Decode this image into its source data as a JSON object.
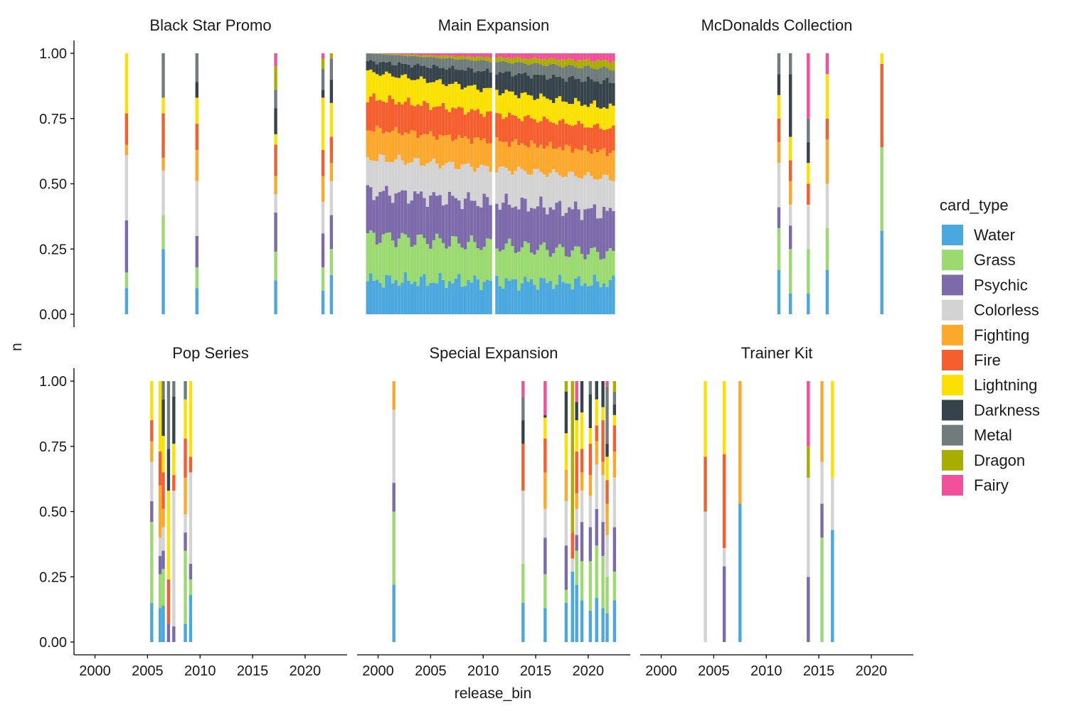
{
  "chart_data": {
    "type": "bar",
    "stacked": true,
    "facet_by": "set_type",
    "xlabel": "release_bin",
    "ylabel": "n",
    "xlim": [
      1998,
      2024
    ],
    "ylim": [
      0,
      1
    ],
    "x_ticks": [
      2000,
      2005,
      2010,
      2015,
      2020
    ],
    "y_ticks": [
      "0.00",
      "0.25",
      "0.50",
      "0.75",
      "1.00"
    ],
    "legend": {
      "title": "card_type",
      "placement": "right",
      "entries": [
        {
          "name": "Water",
          "color": "#4aa8de"
        },
        {
          "name": "Grass",
          "color": "#9ada70"
        },
        {
          "name": "Psychic",
          "color": "#7c6aaa"
        },
        {
          "name": "Colorless",
          "color": "#d3d3d3"
        },
        {
          "name": "Fighting",
          "color": "#fba82c"
        },
        {
          "name": "Fire",
          "color": "#f55e2e"
        },
        {
          "name": "Lightning",
          "color": "#fae103"
        },
        {
          "name": "Darkness",
          "color": "#37434b"
        },
        {
          "name": "Metal",
          "color": "#6f7c7b"
        },
        {
          "name": "Dragon",
          "color": "#a8ad00"
        },
        {
          "name": "Fairy",
          "color": "#f2509b"
        }
      ]
    },
    "facets": [
      {
        "name": "Black Star Promo",
        "bars": [
          {
            "x": 2003.0,
            "segments": {
              "Water": 0.1,
              "Psychic": 0.2,
              "Lightning": 0.23,
              "Grass": 0.06,
              "Fire": 0.12,
              "Fighting": 0.04,
              "Colorless": 0.25
            }
          },
          {
            "x": 2006.5,
            "segments": {
              "Water": 0.25,
              "Metal": 0.17,
              "Lightning": 0.06,
              "Grass": 0.13,
              "Fire": 0.17,
              "Fighting": 0.05,
              "Colorless": 0.17
            }
          },
          {
            "x": 2009.7,
            "segments": {
              "Water": 0.1,
              "Psychic": 0.12,
              "Metal": 0.11,
              "Lightning": 0.1,
              "Grass": 0.08,
              "Fire": 0.1,
              "Fighting": 0.12,
              "Darkness": 0.06,
              "Colorless": 0.21
            }
          },
          {
            "x": 2017.2,
            "segments": {
              "Water": 0.13,
              "Psychic": 0.15,
              "Metal": 0.07,
              "Lightning": 0.04,
              "Grass": 0.11,
              "Fire": 0.12,
              "Fighting": 0.07,
              "Fairy": 0.05,
              "Dragon": 0.09,
              "Darkness": 0.1,
              "Colorless": 0.07
            }
          },
          {
            "x": 2021.7,
            "segments": {
              "Water": 0.09,
              "Psychic": 0.13,
              "Metal": 0.08,
              "Lightning": 0.2,
              "Grass": 0.09,
              "Fire": 0.1,
              "Fighting": 0.1,
              "Fairy": 0.02,
              "Dragon": 0.04,
              "Darkness": 0.03,
              "Colorless": 0.12
            }
          },
          {
            "x": 2022.5,
            "segments": {
              "Water": 0.15,
              "Psychic": 0.13,
              "Metal": 0.08,
              "Lightning": 0.13,
              "Grass": 0.1,
              "Fire": 0.1,
              "Fighting": 0.07,
              "Dragon": 0.02,
              "Darkness": 0.09,
              "Colorless": 0.13
            }
          }
        ]
      },
      {
        "name": "Main Expansion",
        "dense_series": true,
        "x_range": [
          1999.0,
          2022.4
        ],
        "gap": [
          2010.7,
          2011.0
        ],
        "bar_step": 0.3,
        "proportions_start": {
          "Water": 0.13,
          "Psychic": 0.17,
          "Metal": 0.03,
          "Lightning": 0.1,
          "Grass": 0.17,
          "Fire": 0.12,
          "Fighting": 0.11,
          "Darkness": 0.04,
          "Dragon": 0.0,
          "Fairy": 0.0,
          "Colorless": 0.13
        },
        "proportions_end": {
          "Water": 0.12,
          "Psychic": 0.16,
          "Metal": 0.05,
          "Lightning": 0.08,
          "Grass": 0.11,
          "Fire": 0.09,
          "Fighting": 0.1,
          "Darkness": 0.1,
          "Dragon": 0.03,
          "Fairy": 0.03,
          "Colorless": 0.13
        }
      },
      {
        "name": "McDonalds Collection",
        "bars": [
          {
            "x": 2011.2,
            "segments": {
              "Water": 0.17,
              "Psychic": 0.08,
              "Metal": 0.08,
              "Lightning": 0.09,
              "Grass": 0.16,
              "Fire": 0.09,
              "Fighting": 0.08,
              "Darkness": 0.08,
              "Colorless": 0.17
            }
          },
          {
            "x": 2012.3,
            "segments": {
              "Water": 0.08,
              "Psychic": 0.09,
              "Metal": 0.08,
              "Lightning": 0.09,
              "Grass": 0.17,
              "Fire": 0.08,
              "Fighting": 0.09,
              "Darkness": 0.24,
              "Colorless": 0.08
            }
          },
          {
            "x": 2014.0,
            "segments": {
              "Water": 0.08,
              "Metal": 0.09,
              "Lightning": 0.08,
              "Grass": 0.17,
              "Fire": 0.08,
              "Fairy": 0.25,
              "Darkness": 0.08,
              "Colorless": 0.17
            }
          },
          {
            "x": 2015.8,
            "segments": {
              "Water": 0.17,
              "Lightning": 0.17,
              "Grass": 0.16,
              "Fire": 0.08,
              "Fighting": 0.17,
              "Fairy": 0.08,
              "Colorless": 0.17
            }
          },
          {
            "x": 2021.0,
            "segments": {
              "Water": 0.32,
              "Lightning": 0.04,
              "Grass": 0.32,
              "Fire": 0.32
            }
          }
        ]
      },
      {
        "name": "Pop Series",
        "bars": [
          {
            "x": 2005.4,
            "segments": {
              "Water": 0.15,
              "Psychic": 0.08,
              "Lightning": 0.15,
              "Grass": 0.31,
              "Fire": 0.08,
              "Fighting": 0.08,
              "Colorless": 0.15
            }
          },
          {
            "x": 2006.2,
            "segments": {
              "Water": 0.13,
              "Psychic": 0.07,
              "Lightning": 0.27,
              "Grass": 0.13,
              "Fire": 0.13,
              "Fighting": 0.2,
              "Colorless": 0.07
            }
          },
          {
            "x": 2006.5,
            "segments": {
              "Water": 0.14,
              "Psychic": 0.07,
              "Metal": 0.07,
              "Lightning": 0.14,
              "Grass": 0.14,
              "Fire": 0.14,
              "Fighting": 0.07,
              "Darkness": 0.14,
              "Colorless": 0.09
            }
          },
          {
            "x": 2007.0,
            "segments": {
              "Psychic": 0.07,
              "Metal": 0.26,
              "Lightning": 0.34,
              "Fire": 0.17,
              "Darkness": 0.16
            }
          },
          {
            "x": 2007.5,
            "segments": {
              "Psychic": 0.06,
              "Metal": 0.06,
              "Lightning": 0.12,
              "Fire": 0.06,
              "Darkness": 0.18,
              "Colorless": 0.52
            }
          },
          {
            "x": 2008.6,
            "segments": {
              "Water": 0.07,
              "Psychic": 0.07,
              "Metal": 0.07,
              "Lightning": 0.15,
              "Grass": 0.28,
              "Fire": 0.15,
              "Fighting": 0.14,
              "Colorless": 0.07
            }
          },
          {
            "x": 2009.1,
            "segments": {
              "Water": 0.18,
              "Psychic": 0.06,
              "Lightning": 0.29,
              "Grass": 0.06,
              "Fire": 0.06,
              "Colorless": 0.35
            }
          }
        ]
      },
      {
        "name": "Special Expansion",
        "bars": [
          {
            "x": 2001.5,
            "segments": {
              "Water": 0.22,
              "Psychic": 0.11,
              "Grass": 0.28,
              "Fighting": 0.11,
              "Colorless": 0.28
            }
          },
          {
            "x": 2013.8,
            "segments": {
              "Water": 0.15,
              "Metal": 0.09,
              "Grass": 0.15,
              "Fire": 0.18,
              "Fairy": 0.06,
              "Darkness": 0.09,
              "Colorless": 0.28
            }
          },
          {
            "x": 2015.9,
            "segments": {
              "Water": 0.13,
              "Psychic": 0.14,
              "Lightning": 0.08,
              "Grass": 0.13,
              "Fire": 0.13,
              "Fighting": 0.14,
              "Fairy": 0.13,
              "Darkness": 0.01,
              "Colorless": 0.11
            }
          },
          {
            "x": 2017.9,
            "segments": {
              "Water": 0.15,
              "Psychic": 0.17,
              "Lightning": 0.14,
              "Grass": 0.05,
              "Fighting": 0.12,
              "Dragon": 0.04,
              "Darkness": 0.16,
              "Colorless": 0.17
            }
          },
          {
            "x": 2018.5,
            "segments": {
              "Water": 0.27,
              "Fire": 0.1,
              "Dragon": 0.58,
              "Colorless": 0.05
            }
          },
          {
            "x": 2018.9,
            "segments": {
              "Water": 0.22,
              "Psychic": 0.06,
              "Lightning": 0.12,
              "Grass": 0.13,
              "Fire": 0.16,
              "Fighting": 0.06,
              "Fairy": 0.08,
              "Darkness": 0.07,
              "Colorless": 0.1
            }
          },
          {
            "x": 2019.4,
            "segments": {
              "Water": 0.16,
              "Psychic": 0.15,
              "Lightning": 0.14,
              "Grass": 0.15,
              "Fire": 0.09,
              "Fighting": 0.07,
              "Darkness": 0.12,
              "Colorless": 0.12
            }
          },
          {
            "x": 2020.2,
            "segments": {
              "Water": 0.12,
              "Psychic": 0.13,
              "Metal": 0.05,
              "Lightning": 0.06,
              "Grass": 0.19,
              "Fire": 0.12,
              "Fighting": 0.08,
              "Darkness": 0.13,
              "Colorless": 0.12
            }
          },
          {
            "x": 2020.8,
            "segments": {
              "Water": 0.17,
              "Psychic": 0.14,
              "Lightning": 0.1,
              "Grass": 0.2,
              "Fire": 0.06,
              "Fighting": 0.09,
              "Darkness": 0.07,
              "Colorless": 0.17
            }
          },
          {
            "x": 2021.4,
            "segments": {
              "Water": 0.13,
              "Psychic": 0.13,
              "Lightning": 0.05,
              "Grass": 0.2,
              "Fire": 0.16,
              "Fighting": 0.05,
              "Darkness": 0.1,
              "Colorless": 0.18
            }
          },
          {
            "x": 2021.8,
            "segments": {
              "Water": 0.11,
              "Metal": 0.22,
              "Lightning": 0.09,
              "Grass": 0.14,
              "Fire": 0.09,
              "Fighting": 0.12,
              "Fairy": 0.02,
              "Darkness": 0.05,
              "Colorless": 0.16
            }
          },
          {
            "x": 2022.5,
            "segments": {
              "Water": 0.16,
              "Psychic": 0.17,
              "Metal": 0.05,
              "Lightning": 0.04,
              "Grass": 0.11,
              "Fire": 0.1,
              "Fighting": 0.1,
              "Dragon": 0.04,
              "Darkness": 0.04,
              "Colorless": 0.19
            }
          }
        ]
      },
      {
        "name": "Trainer Kit",
        "bars": [
          {
            "x": 2004.2,
            "segments": {
              "Lightning": 0.29,
              "Fire": 0.21,
              "Colorless": 0.5
            }
          },
          {
            "x": 2006.0,
            "segments": {
              "Psychic": 0.29,
              "Lightning": 0.28,
              "Fire": 0.36,
              "Colorless": 0.07
            }
          },
          {
            "x": 2007.5,
            "segments": {
              "Water": 0.53,
              "Fighting": 0.47
            }
          },
          {
            "x": 2014.0,
            "segments": {
              "Psychic": 0.25,
              "Fairy": 0.25,
              "Dragon": 0.12,
              "Colorless": 0.38
            }
          },
          {
            "x": 2015.3,
            "segments": {
              "Psychic": 0.13,
              "Grass": 0.4,
              "Fighting": 0.31,
              "Colorless": 0.16
            }
          },
          {
            "x": 2016.3,
            "segments": {
              "Water": 0.43,
              "Lightning": 0.37,
              "Colorless": 0.2
            }
          }
        ]
      }
    ]
  }
}
